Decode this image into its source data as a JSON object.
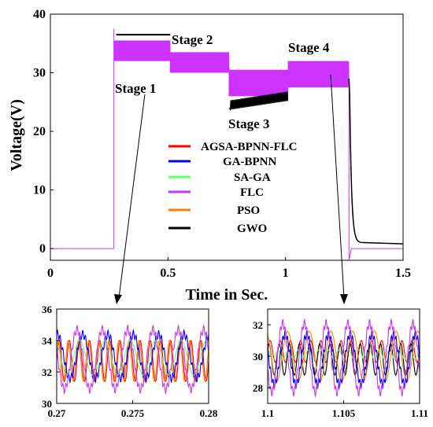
{
  "chart_data": [
    {
      "type": "line",
      "title": "",
      "xlabel": "Time in Sec.",
      "ylabel": "Voltage(V)",
      "xlim": [
        0,
        1.5
      ],
      "ylim": [
        -2,
        40
      ],
      "xticks": [
        0,
        0.5,
        1,
        1.5
      ],
      "xtick_labels": [
        "0",
        "0.5",
        "1",
        "1.5"
      ],
      "yticks": [
        0,
        10,
        20,
        30,
        40
      ],
      "ytick_labels": [
        "0",
        "10",
        "20",
        "30",
        "40"
      ],
      "grid": false,
      "legend_position": "center",
      "series": [
        {
          "name": "AGSA-BPNN-FLC",
          "color": "#ff0000"
        },
        {
          "name": "GA-BPNN",
          "color": "#0000ff"
        },
        {
          "name": "SA-GA",
          "color": "#66ff66"
        },
        {
          "name": "FLC",
          "color": "#cc33ff"
        },
        {
          "name": "PSO",
          "color": "#ff8000"
        },
        {
          "name": "GWO",
          "color": "#000000"
        }
      ],
      "stage_levels": [
        {
          "stage": "Stage 1",
          "t_start": 0.27,
          "t_end": 0.51,
          "FLC_band": [
            32.0,
            35.5
          ],
          "GWO_level": 36.5
        },
        {
          "stage": "Stage 2",
          "t_start": 0.51,
          "t_end": 0.76,
          "FLC_band": [
            30.0,
            33.5
          ],
          "GWO_level": 32.0
        },
        {
          "stage": "Stage 3",
          "t_start": 0.76,
          "t_end": 1.01,
          "FLC_band": [
            26.0,
            30.5
          ],
          "GWO_level": 25.5
        },
        {
          "stage": "Stage 4",
          "t_start": 1.01,
          "t_end": 1.27,
          "FLC_band": [
            27.5,
            32.0
          ],
          "GWO_level": 30.0
        }
      ],
      "annotations": [
        "Stage 1",
        "Stage 2",
        "Stage 3",
        "Stage 4"
      ]
    },
    {
      "type": "line",
      "title": "",
      "xlim": [
        0.27,
        0.28
      ],
      "ylim": [
        30,
        36
      ],
      "xticks": [
        0.27,
        0.275,
        0.28
      ],
      "xtick_labels": [
        "0.27",
        "0.275",
        "0.28"
      ],
      "yticks": [
        30,
        32,
        34,
        36
      ],
      "ytick_labels": [
        "30",
        "32",
        "34",
        "36"
      ],
      "series": [
        {
          "name": "AGSA-BPNN-FLC",
          "center": 32.7,
          "amplitude": 1.3,
          "cycles": 15
        },
        {
          "name": "PSO",
          "center": 32.7,
          "amplitude": 1.3,
          "cycles": 15
        },
        {
          "name": "GA-BPNN",
          "center": 33.0,
          "amplitude": 1.4,
          "cycles": 6
        },
        {
          "name": "SA-GA",
          "center": 32.9,
          "amplitude": 1.1,
          "cycles": 6
        },
        {
          "name": "FLC",
          "center": 32.8,
          "amplitude": 1.9,
          "cycles": 6
        }
      ]
    },
    {
      "type": "line",
      "title": "",
      "xlim": [
        1.1,
        1.11
      ],
      "ylim": [
        27,
        33
      ],
      "xticks": [
        1.1,
        1.105,
        1.11
      ],
      "xtick_labels": [
        "1.1",
        "1.105",
        "1.11"
      ],
      "yticks": [
        28,
        30,
        32
      ],
      "ytick_labels": [
        "28",
        "30",
        "32"
      ],
      "series": [
        {
          "name": "AGSA-BPNN-FLC",
          "center": 30.3,
          "amplitude": 0.7,
          "cycles": 15
        },
        {
          "name": "GWO",
          "center": 29.8,
          "amplitude": 1.0,
          "cycles": 15
        },
        {
          "name": "SA-GA",
          "center": 30.1,
          "amplitude": 0.3,
          "cycles": 15
        },
        {
          "name": "PSO",
          "center": 30.0,
          "amplitude": 1.6,
          "cycles": 7
        },
        {
          "name": "GA-BPNN",
          "center": 29.8,
          "amplitude": 1.6,
          "cycles": 7
        },
        {
          "name": "FLC",
          "center": 29.9,
          "amplitude": 2.2,
          "cycles": 7
        }
      ]
    }
  ]
}
